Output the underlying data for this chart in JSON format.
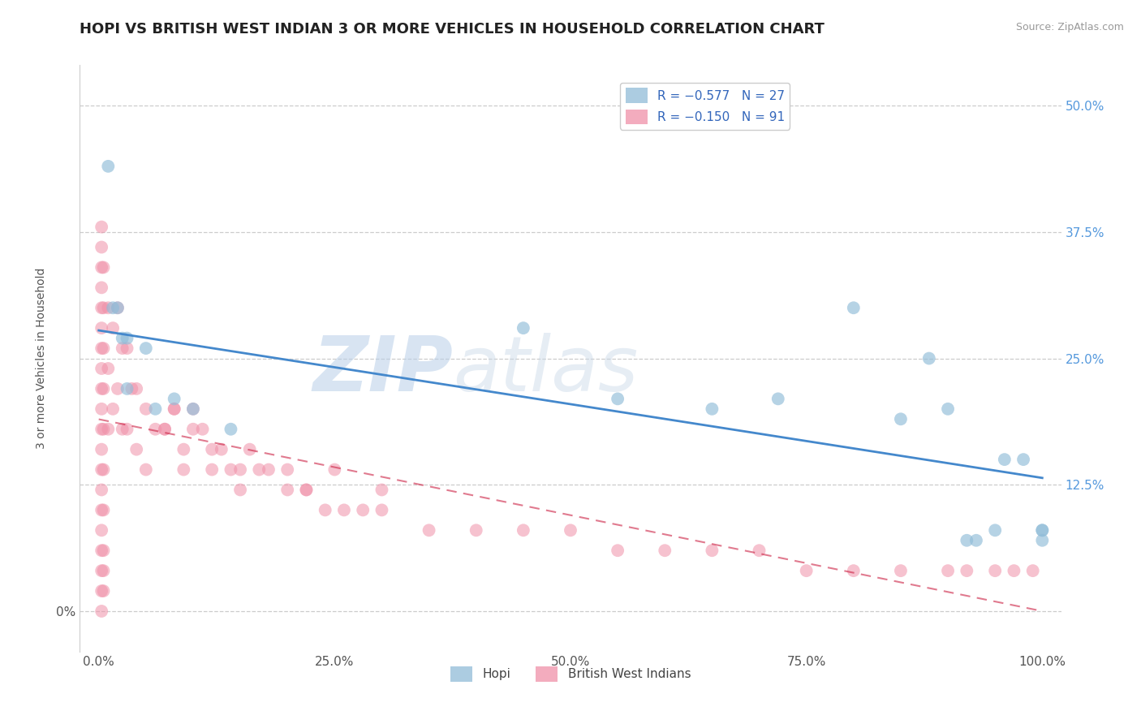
{
  "title": "HOPI VS BRITISH WEST INDIAN 3 OR MORE VEHICLES IN HOUSEHOLD CORRELATION CHART",
  "source": "Source: ZipAtlas.com",
  "ylabel": "3 or more Vehicles in Household",
  "xlim": [
    -2,
    102
  ],
  "ylim": [
    -4,
    54
  ],
  "xticks": [
    0,
    25,
    50,
    75,
    100
  ],
  "xticklabels": [
    "0.0%",
    "25.0%",
    "50.0%",
    "75.0%",
    "100.0%"
  ],
  "yticks": [
    0,
    12.5,
    25,
    37.5,
    50
  ],
  "yticklabels_left": [
    "0%",
    "",
    "",
    "",
    ""
  ],
  "yticklabels_right": [
    "",
    "12.5%",
    "25.0%",
    "37.5%",
    "50.0%"
  ],
  "hopi_x": [
    1,
    1.5,
    2,
    2.5,
    3,
    5,
    6,
    8,
    10,
    14,
    45,
    55,
    65,
    72,
    80,
    85,
    88,
    90,
    92,
    93,
    95,
    96,
    98,
    100,
    100,
    100,
    3
  ],
  "hopi_y": [
    44,
    30,
    30,
    27,
    27,
    26,
    20,
    21,
    20,
    18,
    28,
    21,
    20,
    21,
    30,
    19,
    25,
    20,
    7,
    7,
    8,
    15,
    15,
    8,
    8,
    7,
    22
  ],
  "bwi_x": [
    0.3,
    0.3,
    0.3,
    0.3,
    0.3,
    0.3,
    0.3,
    0.3,
    0.3,
    0.3,
    0.3,
    0.3,
    0.3,
    0.3,
    0.3,
    0.3,
    0.3,
    0.3,
    0.3,
    0.3,
    0.5,
    0.5,
    0.5,
    0.5,
    0.5,
    0.5,
    0.5,
    0.5,
    0.5,
    0.5,
    1.0,
    1.0,
    1.0,
    1.5,
    1.5,
    2.0,
    2.0,
    2.5,
    2.5,
    3.0,
    3.0,
    3.5,
    4.0,
    4.0,
    5.0,
    5.0,
    6.0,
    7.0,
    8.0,
    9.0,
    10.0,
    11.0,
    12.0,
    13.0,
    14.0,
    15.0,
    16.0,
    17.0,
    18.0,
    20.0,
    22.0,
    24.0,
    26.0,
    28.0,
    30.0,
    35.0,
    40.0,
    45.0,
    50.0,
    55.0,
    60.0,
    65.0,
    70.0,
    75.0,
    80.0,
    85.0,
    90.0,
    92.0,
    95.0,
    97.0,
    99.0,
    20.0,
    22.0,
    25.0,
    30.0,
    7.0,
    8.0,
    9.0,
    10.0,
    12.0,
    15.0
  ],
  "bwi_y": [
    38,
    36,
    34,
    32,
    30,
    28,
    26,
    24,
    22,
    20,
    18,
    16,
    14,
    12,
    10,
    8,
    6,
    4,
    2,
    0,
    34,
    30,
    26,
    22,
    18,
    14,
    10,
    6,
    4,
    2,
    30,
    24,
    18,
    28,
    20,
    30,
    22,
    26,
    18,
    26,
    18,
    22,
    22,
    16,
    20,
    14,
    18,
    18,
    20,
    16,
    20,
    18,
    16,
    16,
    14,
    14,
    16,
    14,
    14,
    12,
    12,
    10,
    10,
    10,
    10,
    8,
    8,
    8,
    8,
    6,
    6,
    6,
    6,
    4,
    4,
    4,
    4,
    4,
    4,
    4,
    4,
    14,
    12,
    14,
    12,
    18,
    20,
    14,
    18,
    14,
    12
  ],
  "hopi_color": "#90bcd8",
  "bwi_color": "#f090a8",
  "hopi_line_color": "#4488cc",
  "bwi_line_color": "#cc2244",
  "bg_color": "#ffffff",
  "title_fontsize": 13,
  "axis_label_fontsize": 10,
  "tick_fontsize": 11,
  "watermark_zip_color": "#b8cfe8",
  "watermark_atlas_color": "#c8d8e8"
}
